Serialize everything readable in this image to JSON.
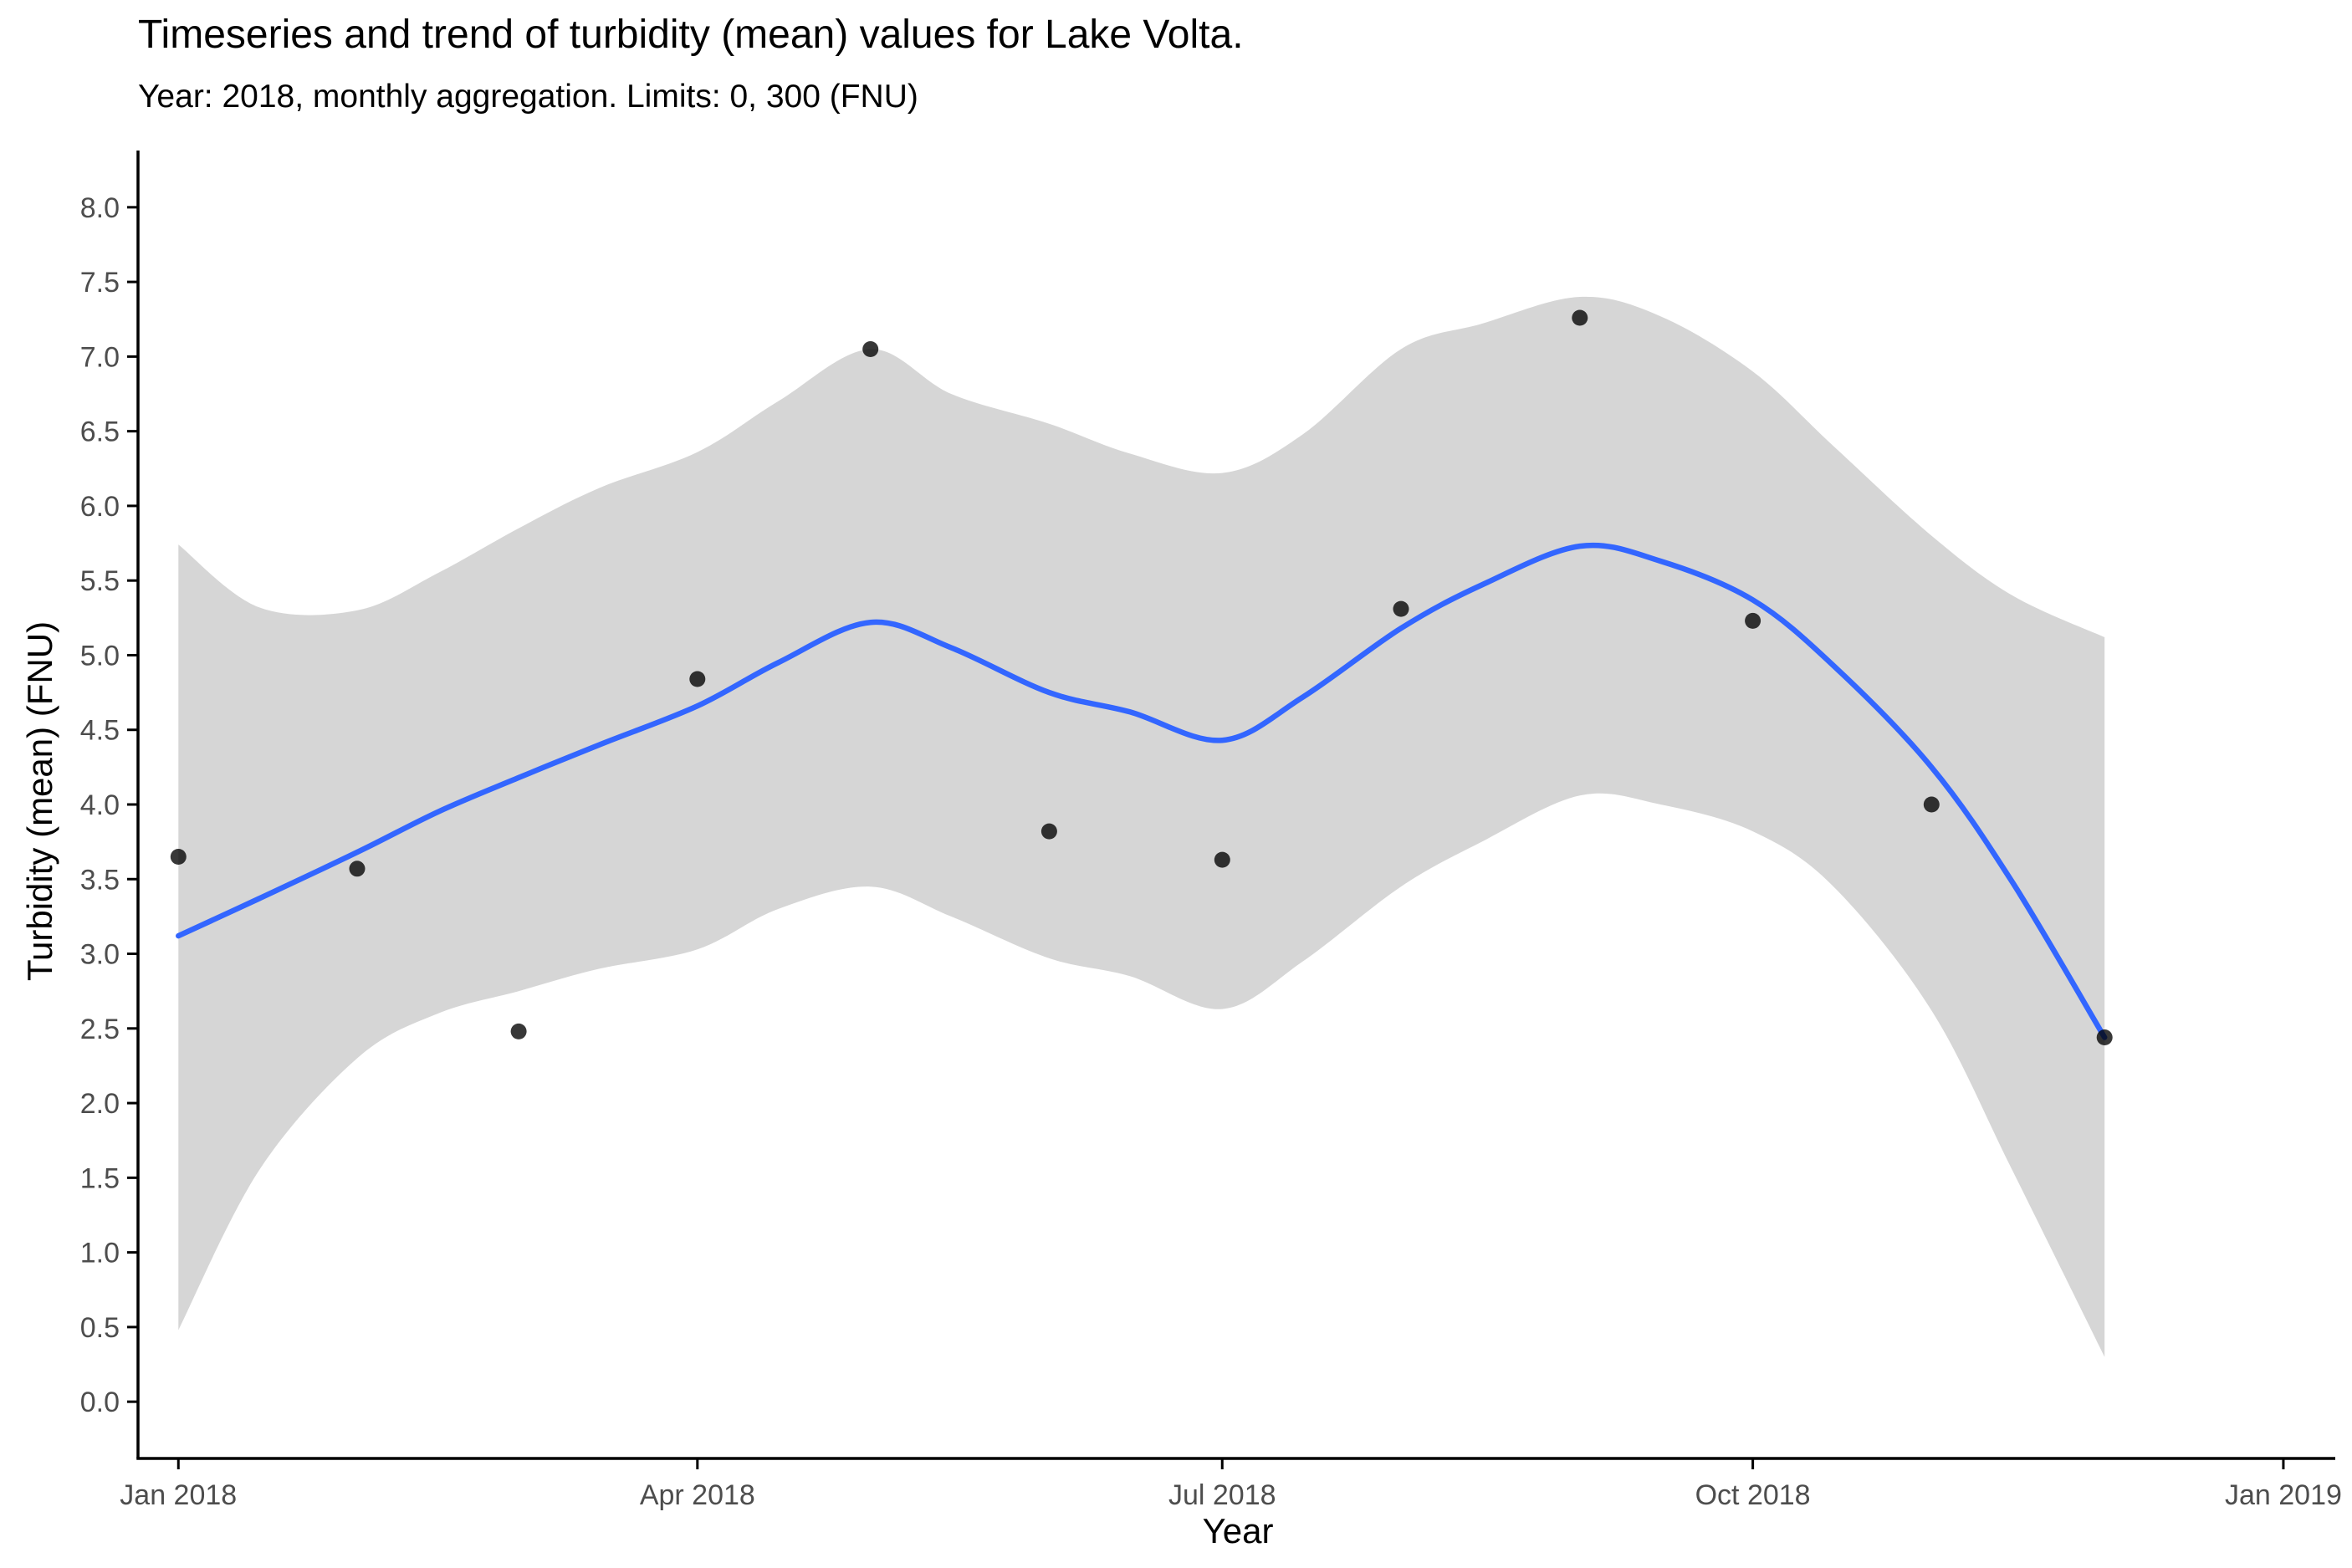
{
  "chart_data": {
    "type": "line",
    "title": "Timeseries and trend of turbidity (mean) values for Lake Volta.",
    "subtitle": "Year: 2018, monthly aggregation. Limits: 0, 300 (FNU)",
    "xlabel": "Year",
    "ylabel": "Turbidity (mean) (FNU)",
    "x_axis_type": "date",
    "xlim": [
      "2017-12-25",
      "2019-01-10"
    ],
    "ylim": [
      -0.38,
      8.38
    ],
    "x_ticks": [
      {
        "date": "2018-01-01",
        "label": "Jan 2018"
      },
      {
        "date": "2018-04-01",
        "label": "Apr 2018"
      },
      {
        "date": "2018-07-01",
        "label": "Jul 2018"
      },
      {
        "date": "2018-10-01",
        "label": "Oct 2018"
      },
      {
        "date": "2019-01-01",
        "label": "Jan 2019"
      }
    ],
    "y_ticks": [
      0.0,
      0.5,
      1.0,
      1.5,
      2.0,
      2.5,
      3.0,
      3.5,
      4.0,
      4.5,
      5.0,
      5.5,
      6.0,
      6.5,
      7.0,
      7.5,
      8.0
    ],
    "grid": false,
    "legend": "none",
    "colors": {
      "points": "#000000",
      "trend": "#3366ff",
      "ribbon": "#d6d6d6",
      "axis": "#000000",
      "tick_label": "#4d4d4d"
    },
    "series": [
      {
        "kind": "points",
        "x": [
          "2018-01-01",
          "2018-02-01",
          "2018-03-01",
          "2018-04-01",
          "2018-05-01",
          "2018-06-01",
          "2018-07-01",
          "2018-08-01",
          "2018-09-01",
          "2018-10-01",
          "2018-11-01",
          "2018-12-01"
        ],
        "values": [
          3.65,
          3.57,
          2.48,
          4.84,
          7.05,
          3.82,
          3.63,
          5.31,
          7.26,
          5.23,
          4.0,
          2.44
        ]
      },
      {
        "kind": "trend",
        "x": [
          "2018-01-01",
          "2018-01-15",
          "2018-02-01",
          "2018-02-15",
          "2018-03-01",
          "2018-03-15",
          "2018-04-01",
          "2018-04-15",
          "2018-05-01",
          "2018-05-15",
          "2018-06-01",
          "2018-06-15",
          "2018-07-01",
          "2018-07-15",
          "2018-08-01",
          "2018-08-15",
          "2018-09-01",
          "2018-09-15",
          "2018-10-01",
          "2018-10-15",
          "2018-11-01",
          "2018-11-15",
          "2018-12-01"
        ],
        "values": [
          3.12,
          3.37,
          3.68,
          3.95,
          4.18,
          4.4,
          4.66,
          4.95,
          5.22,
          5.05,
          4.75,
          4.62,
          4.43,
          4.72,
          5.18,
          5.47,
          5.73,
          5.63,
          5.37,
          4.93,
          4.25,
          3.48,
          2.44
        ]
      },
      {
        "kind": "ribbon",
        "x": [
          "2018-01-01",
          "2018-01-15",
          "2018-02-01",
          "2018-02-15",
          "2018-03-01",
          "2018-03-15",
          "2018-04-01",
          "2018-04-15",
          "2018-05-01",
          "2018-05-15",
          "2018-06-01",
          "2018-06-15",
          "2018-07-01",
          "2018-07-15",
          "2018-08-01",
          "2018-08-15",
          "2018-09-01",
          "2018-09-15",
          "2018-10-01",
          "2018-10-15",
          "2018-11-01",
          "2018-11-15",
          "2018-12-01"
        ],
        "lower": [
          0.48,
          1.55,
          2.3,
          2.6,
          2.75,
          2.9,
          3.03,
          3.3,
          3.45,
          3.25,
          2.97,
          2.85,
          2.63,
          2.95,
          3.45,
          3.75,
          4.06,
          4.0,
          3.82,
          3.45,
          2.62,
          1.55,
          0.3
        ],
        "upper": [
          5.74,
          5.32,
          5.3,
          5.55,
          5.85,
          6.12,
          6.36,
          6.7,
          7.05,
          6.75,
          6.55,
          6.35,
          6.22,
          6.48,
          7.05,
          7.22,
          7.4,
          7.27,
          6.9,
          6.4,
          5.8,
          5.4,
          5.12
        ]
      }
    ]
  }
}
